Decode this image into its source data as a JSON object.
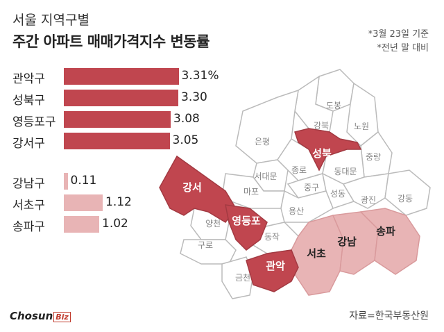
{
  "header": {
    "subtitle": "서울 지역구별",
    "title": "주간 아파트 매매가격지수 변동률",
    "note1": "*3월 23일 기준",
    "note2": "*전년 말 대비"
  },
  "footer": {
    "source": "자료=한국부동산원",
    "logo_main": "Chosun",
    "logo_biz": "Biz"
  },
  "colors": {
    "high": "#c0464f",
    "low": "#e8b4b5",
    "map_base": "#ffffff",
    "map_stroke": "#bbbbbb"
  },
  "chart_data": {
    "type": "bar",
    "orientation": "horizontal",
    "categories": [
      "관악구",
      "성북구",
      "영등포구",
      "강서구",
      "강남구",
      "서초구",
      "송파구"
    ],
    "values": [
      3.31,
      3.3,
      3.08,
      3.05,
      0.11,
      1.12,
      1.02
    ],
    "value_labels": [
      "3.31%",
      "3.30",
      "3.08",
      "3.05",
      "0.11",
      "1.12",
      "1.02"
    ],
    "xlim": [
      0,
      3.4
    ]
  },
  "map": {
    "highlight_labels": [
      "성북",
      "강서",
      "영등포",
      "관악"
    ],
    "light_labels": [
      "서초",
      "강남",
      "송파"
    ],
    "district_labels": [
      "도봉",
      "강북",
      "노원",
      "은평",
      "중랑",
      "서대문",
      "종로",
      "동대문",
      "마포",
      "중구",
      "성동",
      "광진",
      "강동",
      "용산",
      "양천",
      "동작",
      "구로",
      "금천"
    ]
  }
}
